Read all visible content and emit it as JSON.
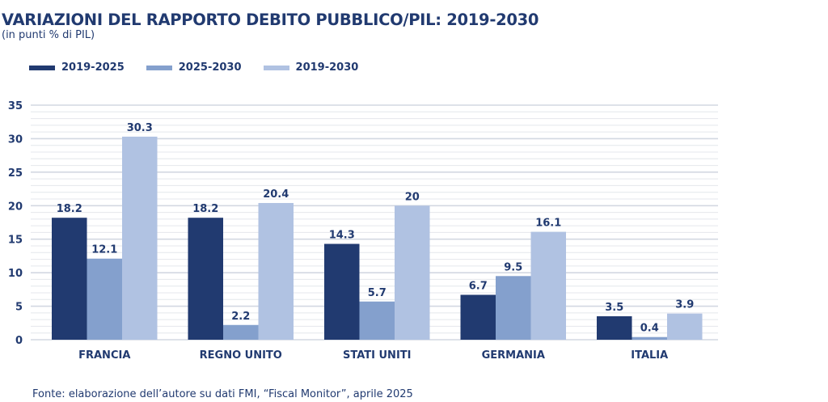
{
  "chart_data": {
    "type": "bar",
    "title": "VARIAZIONI DEL RAPPORTO DEBITO PUBBLICO/PIL: 2019-2030",
    "subtitle": "(in punti % di PIL)",
    "xlabel": "",
    "ylabel": "",
    "ylim": [
      0,
      35
    ],
    "yticks": [
      0,
      5,
      10,
      15,
      20,
      25,
      30,
      35
    ],
    "minor_grid_step": 1,
    "grid": true,
    "legend_position": "top-left",
    "categories": [
      "FRANCIA",
      "REGNO UNITO",
      "STATI UNITI",
      "GERMANIA",
      "ITALIA"
    ],
    "series": [
      {
        "name": "2019-2025",
        "color": "#213a70",
        "values": [
          18.2,
          18.2,
          14.3,
          6.7,
          3.5
        ],
        "labels": [
          "18.2",
          "18.2",
          "14.3",
          "6.7",
          "3.5"
        ]
      },
      {
        "name": "2025-2030",
        "color": "#84a0cd",
        "values": [
          12.1,
          2.2,
          5.7,
          9.5,
          0.4
        ],
        "labels": [
          "12.1",
          "2.2",
          "5.7",
          "9.5",
          "0.4"
        ]
      },
      {
        "name": "2019-2030",
        "color": "#b0c2e2",
        "values": [
          30.3,
          20.4,
          20,
          16.1,
          3.9
        ],
        "labels": [
          "30.3",
          "20.4",
          "20",
          "16.1",
          "3.9"
        ]
      }
    ],
    "source": "Fonte: elaborazione dell’autore su dati FMI, “Fiscal Monitor”, aprile 2025"
  }
}
